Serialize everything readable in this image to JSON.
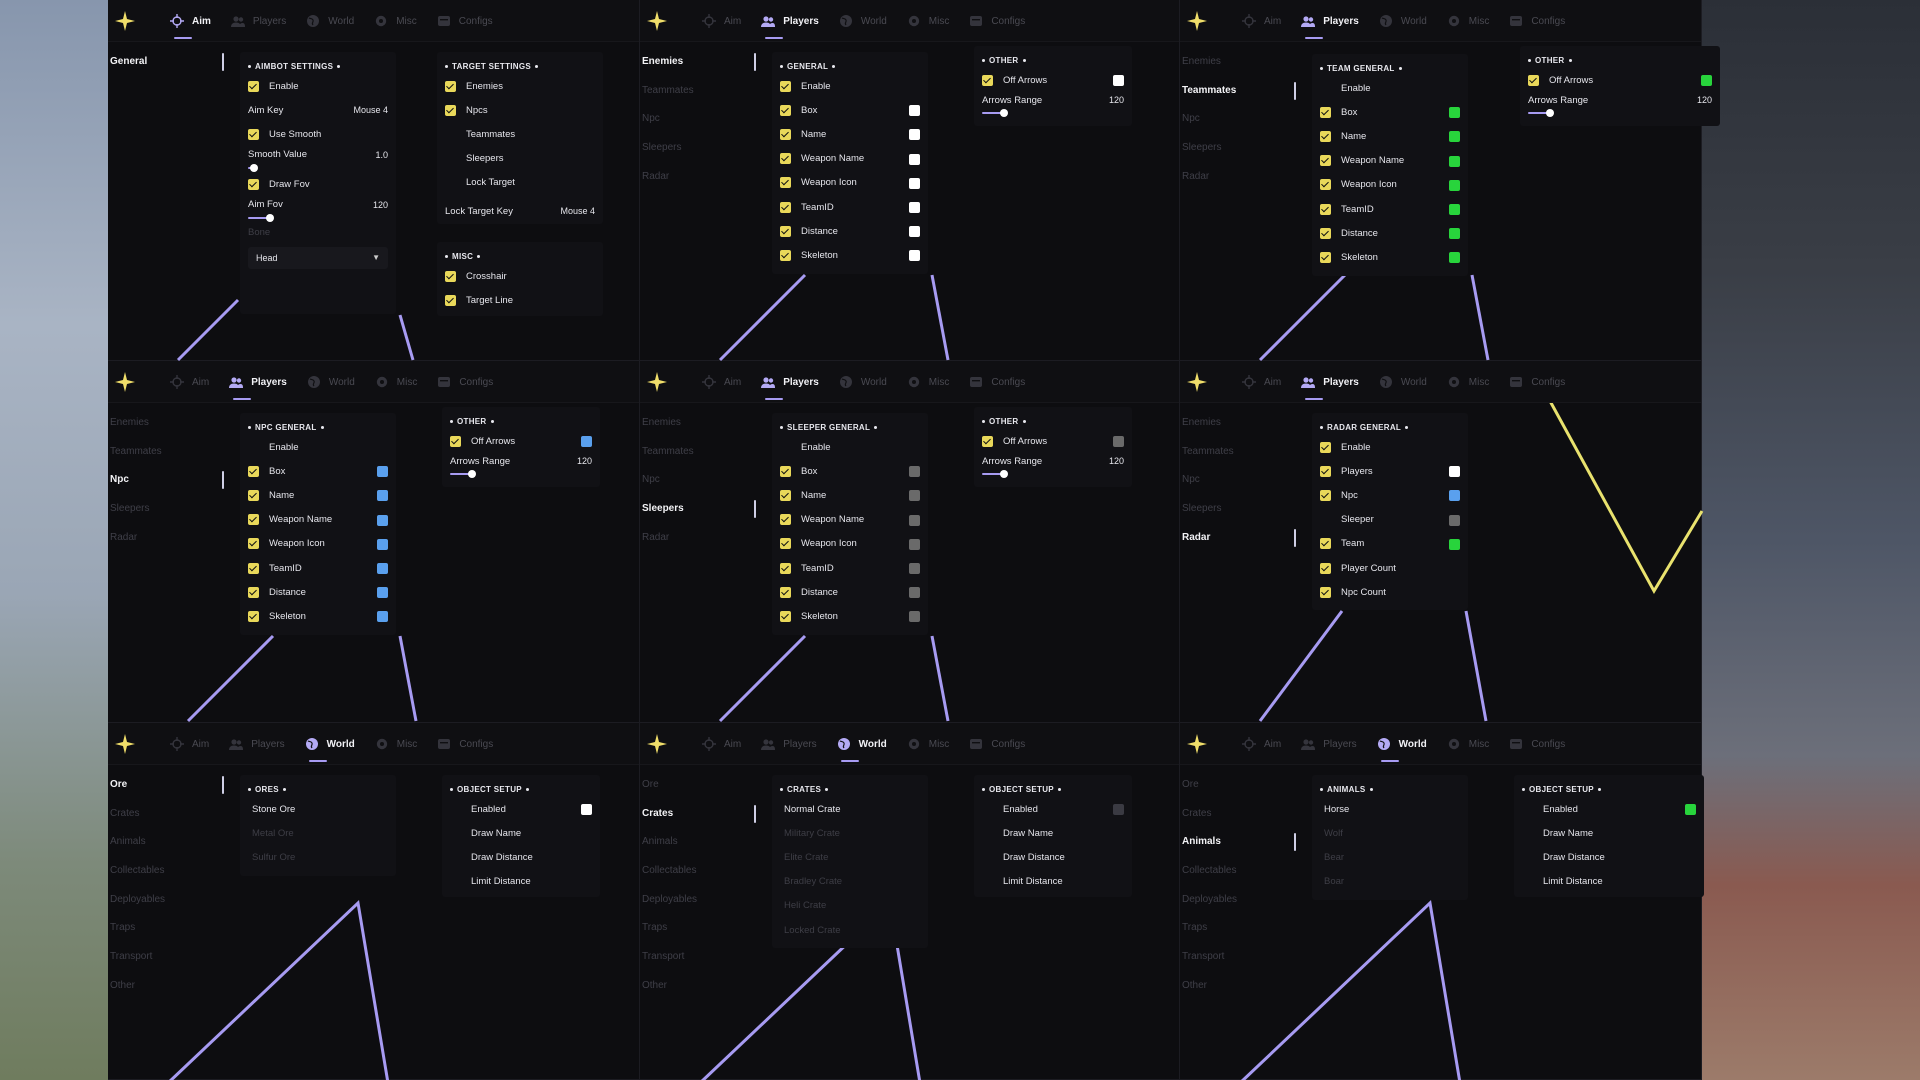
{
  "tabs": [
    "Aim",
    "Players",
    "World",
    "Misc",
    "Configs"
  ],
  "colors": {
    "accent": "#a79bf2",
    "check": "#e9d85a",
    "white": "#ffffff",
    "blue": "#5aa0ee",
    "green": "#28d43c",
    "gray": "#6a6a6a",
    "dark": "#3a3a42",
    "yellow_line": "#e9e26e"
  },
  "panels": [
    {
      "active_tab": "Aim",
      "sidebar": {
        "items": [
          "General"
        ],
        "active": 0
      },
      "aimbot": {
        "title": "AIMBOT SETTINGS",
        "enable": "Enable",
        "aim_key": "Aim Key",
        "aim_key_val": "Mouse 4",
        "use_smooth": "Use Smooth",
        "smooth_value": "Smooth Value",
        "smooth_value_val": "1.0",
        "smooth_level": 0.0,
        "draw_fov": "Draw Fov",
        "aim_fov": "Aim Fov",
        "aim_fov_val": "120",
        "aim_fov_level": 0.16,
        "bone": "Bone",
        "bone_val": "Head"
      },
      "target": {
        "title": "TARGET SETTINGS",
        "items": [
          {
            "label": "Enemies",
            "checked": true
          },
          {
            "label": "Npcs",
            "checked": true
          },
          {
            "label": "Teammates",
            "checked": false
          },
          {
            "label": "Sleepers",
            "checked": false
          },
          {
            "label": "Lock Target",
            "checked": false
          }
        ],
        "lock_key": "Lock Target Key",
        "lock_key_val": "Mouse 4"
      },
      "misc": {
        "title": "MISC",
        "items": [
          {
            "label": "Crosshair",
            "checked": true
          },
          {
            "label": "Target Line",
            "checked": true
          }
        ]
      }
    },
    {
      "active_tab": "Players",
      "sidebar": {
        "items": [
          "Enemies",
          "Teammates",
          "Npc",
          "Sleepers",
          "Radar"
        ],
        "active": 0
      },
      "general": {
        "title": "GENERAL",
        "rows": [
          {
            "label": "Enable",
            "checked": true,
            "swatch": ""
          },
          {
            "label": "Box",
            "checked": true,
            "swatch": "white"
          },
          {
            "label": "Name",
            "checked": true,
            "swatch": "white"
          },
          {
            "label": "Weapon Name",
            "checked": true,
            "swatch": "white"
          },
          {
            "label": "Weapon Icon",
            "checked": true,
            "swatch": "white"
          },
          {
            "label": "TeamID",
            "checked": true,
            "swatch": "white"
          },
          {
            "label": "Distance",
            "checked": true,
            "swatch": "white"
          },
          {
            "label": "Skeleton",
            "checked": true,
            "swatch": "white"
          }
        ]
      },
      "other": {
        "title": "OTHER",
        "off_arrows": "Off Arrows",
        "swatch": "white",
        "arrows_range": "Arrows Range",
        "arrows_range_val": "120",
        "arrows_level": 0.16
      }
    },
    {
      "active_tab": "Players",
      "sidebar": {
        "items": [
          "Enemies",
          "Teammates",
          "Npc",
          "Sleepers",
          "Radar"
        ],
        "active": 1
      },
      "general": {
        "title": "TEAM GENERAL",
        "rows": [
          {
            "label": "Enable",
            "checked": false,
            "swatch": ""
          },
          {
            "label": "Box",
            "checked": true,
            "swatch": "green"
          },
          {
            "label": "Name",
            "checked": true,
            "swatch": "green"
          },
          {
            "label": "Weapon Name",
            "checked": true,
            "swatch": "green"
          },
          {
            "label": "Weapon Icon",
            "checked": true,
            "swatch": "green"
          },
          {
            "label": "TeamID",
            "checked": true,
            "swatch": "green"
          },
          {
            "label": "Distance",
            "checked": true,
            "swatch": "green"
          },
          {
            "label": "Skeleton",
            "checked": true,
            "swatch": "green"
          }
        ]
      },
      "other": {
        "title": "OTHER",
        "off_arrows": "Off Arrows",
        "swatch": "green",
        "arrows_range": "Arrows Range",
        "arrows_range_val": "120",
        "arrows_level": 0.16
      }
    },
    {
      "active_tab": "Players",
      "sidebar": {
        "items": [
          "Enemies",
          "Teammates",
          "Npc",
          "Sleepers",
          "Radar"
        ],
        "active": 2
      },
      "general": {
        "title": "NPC GENERAL",
        "rows": [
          {
            "label": "Enable",
            "checked": false,
            "swatch": ""
          },
          {
            "label": "Box",
            "checked": true,
            "swatch": "blue"
          },
          {
            "label": "Name",
            "checked": true,
            "swatch": "blue"
          },
          {
            "label": "Weapon Name",
            "checked": true,
            "swatch": "blue"
          },
          {
            "label": "Weapon Icon",
            "checked": true,
            "swatch": "blue"
          },
          {
            "label": "TeamID",
            "checked": true,
            "swatch": "blue"
          },
          {
            "label": "Distance",
            "checked": true,
            "swatch": "blue"
          },
          {
            "label": "Skeleton",
            "checked": true,
            "swatch": "blue"
          }
        ]
      },
      "other": {
        "title": "OTHER",
        "off_arrows": "Off Arrows",
        "swatch": "blue",
        "arrows_range": "Arrows Range",
        "arrows_range_val": "120",
        "arrows_level": 0.16
      }
    },
    {
      "active_tab": "Players",
      "sidebar": {
        "items": [
          "Enemies",
          "Teammates",
          "Npc",
          "Sleepers",
          "Radar"
        ],
        "active": 3
      },
      "general": {
        "title": "SLEEPER GENERAL",
        "rows": [
          {
            "label": "Enable",
            "checked": false,
            "swatch": ""
          },
          {
            "label": "Box",
            "checked": true,
            "swatch": "gray"
          },
          {
            "label": "Name",
            "checked": true,
            "swatch": "gray"
          },
          {
            "label": "Weapon Name",
            "checked": true,
            "swatch": "gray"
          },
          {
            "label": "Weapon Icon",
            "checked": true,
            "swatch": "gray"
          },
          {
            "label": "TeamID",
            "checked": true,
            "swatch": "gray"
          },
          {
            "label": "Distance",
            "checked": true,
            "swatch": "gray"
          },
          {
            "label": "Skeleton",
            "checked": true,
            "swatch": "gray"
          }
        ]
      },
      "other": {
        "title": "OTHER",
        "off_arrows": "Off Arrows",
        "swatch": "gray",
        "arrows_range": "Arrows Range",
        "arrows_range_val": "120",
        "arrows_level": 0.16
      }
    },
    {
      "active_tab": "Players",
      "sidebar": {
        "items": [
          "Enemies",
          "Teammates",
          "Npc",
          "Sleepers",
          "Radar"
        ],
        "active": 4
      },
      "general": {
        "title": "RADAR GENERAL",
        "rows": [
          {
            "label": "Enable",
            "checked": true,
            "swatch": ""
          },
          {
            "label": "Players",
            "checked": true,
            "swatch": "white"
          },
          {
            "label": "Npc",
            "checked": true,
            "swatch": "blue"
          },
          {
            "label": "Sleeper",
            "checked": false,
            "swatch": "gray"
          },
          {
            "label": "Team",
            "checked": true,
            "swatch": "green"
          },
          {
            "label": "Player Count",
            "checked": true,
            "swatch": ""
          },
          {
            "label": "Npc Count",
            "checked": true,
            "swatch": ""
          }
        ]
      }
    },
    {
      "active_tab": "World",
      "sidebar": {
        "items": [
          "Ore",
          "Crates",
          "Animals",
          "Collectables",
          "Deployables",
          "Traps",
          "Transport",
          "Other"
        ],
        "active": 0
      },
      "list": {
        "title": "ORES",
        "items": [
          {
            "label": "Stone Ore",
            "active": true
          },
          {
            "label": "Metal Ore",
            "active": false
          },
          {
            "label": "Sulfur Ore",
            "active": false
          }
        ]
      },
      "setup": {
        "title": "OBJECT SETUP",
        "rows": [
          "Enabled",
          "Draw Name",
          "Draw Distance",
          "Limit Distance"
        ],
        "swatch": "white"
      }
    },
    {
      "active_tab": "World",
      "sidebar": {
        "items": [
          "Ore",
          "Crates",
          "Animals",
          "Collectables",
          "Deployables",
          "Traps",
          "Transport",
          "Other"
        ],
        "active": 1
      },
      "list": {
        "title": "CRATES",
        "items": [
          {
            "label": "Normal Crate",
            "active": true
          },
          {
            "label": "Military Crate",
            "active": false
          },
          {
            "label": "Elite Crate",
            "active": false
          },
          {
            "label": "Bradley Crate",
            "active": false
          },
          {
            "label": "Heli Crate",
            "active": false
          },
          {
            "label": "Locked Crate",
            "active": false
          }
        ]
      },
      "setup": {
        "title": "OBJECT SETUP",
        "rows": [
          "Enabled",
          "Draw Name",
          "Draw Distance",
          "Limit Distance"
        ],
        "swatch": "dark"
      }
    },
    {
      "active_tab": "World",
      "sidebar": {
        "items": [
          "Ore",
          "Crates",
          "Animals",
          "Collectables",
          "Deployables",
          "Traps",
          "Transport",
          "Other"
        ],
        "active": 2
      },
      "list": {
        "title": "ANIMALS",
        "items": [
          {
            "label": "Horse",
            "active": true
          },
          {
            "label": "Wolf",
            "active": false
          },
          {
            "label": "Bear",
            "active": false
          },
          {
            "label": "Boar",
            "active": false
          }
        ]
      },
      "setup": {
        "title": "OBJECT SETUP",
        "rows": [
          "Enabled",
          "Draw Name",
          "Draw Distance",
          "Limit Distance"
        ],
        "swatch": "green"
      }
    }
  ]
}
